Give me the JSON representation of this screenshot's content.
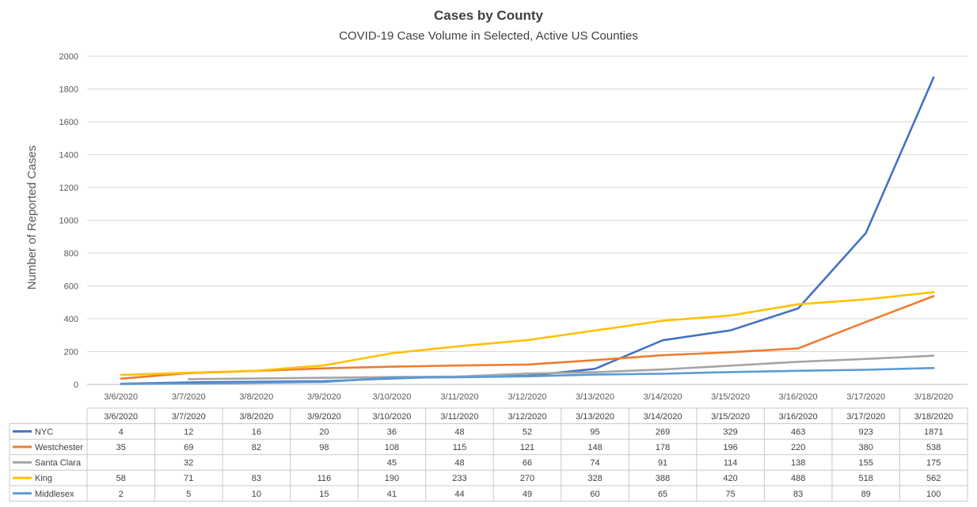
{
  "chart_data": {
    "type": "line",
    "title": "Cases by County",
    "subtitle": "COVID-19 Case Volume in Selected, Active US Counties",
    "ylabel": "Number of Reported Cases",
    "xlabel": "",
    "ylim": [
      0,
      2000
    ],
    "yticks": [
      0,
      200,
      400,
      600,
      800,
      1000,
      1200,
      1400,
      1600,
      1800,
      2000
    ],
    "grid": true,
    "legend": "data-table",
    "categories": [
      "3/6/2020",
      "3/7/2020",
      "3/8/2020",
      "3/9/2020",
      "3/10/2020",
      "3/11/2020",
      "3/12/2020",
      "3/13/2020",
      "3/14/2020",
      "3/15/2020",
      "3/16/2020",
      "3/17/2020",
      "3/18/2020"
    ],
    "series": [
      {
        "name": "NYC",
        "color": "#4472C4",
        "values": [
          4,
          12,
          16,
          20,
          36,
          48,
          52,
          95,
          269,
          329,
          463,
          923,
          1871
        ]
      },
      {
        "name": "Westchester",
        "color": "#ED7D31",
        "values": [
          35,
          69,
          82,
          98,
          108,
          115,
          121,
          148,
          178,
          196,
          220,
          380,
          538
        ]
      },
      {
        "name": "Santa Clara",
        "color": "#A5A5A5",
        "values": [
          null,
          32,
          null,
          null,
          45,
          48,
          66,
          74,
          91,
          114,
          138,
          155,
          175
        ]
      },
      {
        "name": "King",
        "color": "#FFC000",
        "values": [
          58,
          71,
          83,
          116,
          190,
          233,
          270,
          328,
          388,
          420,
          488,
          518,
          562
        ]
      },
      {
        "name": "Middlesex",
        "color": "#5B9BD5",
        "values": [
          2,
          5,
          10,
          15,
          41,
          44,
          49,
          60,
          65,
          75,
          83,
          89,
          100
        ]
      }
    ]
  }
}
